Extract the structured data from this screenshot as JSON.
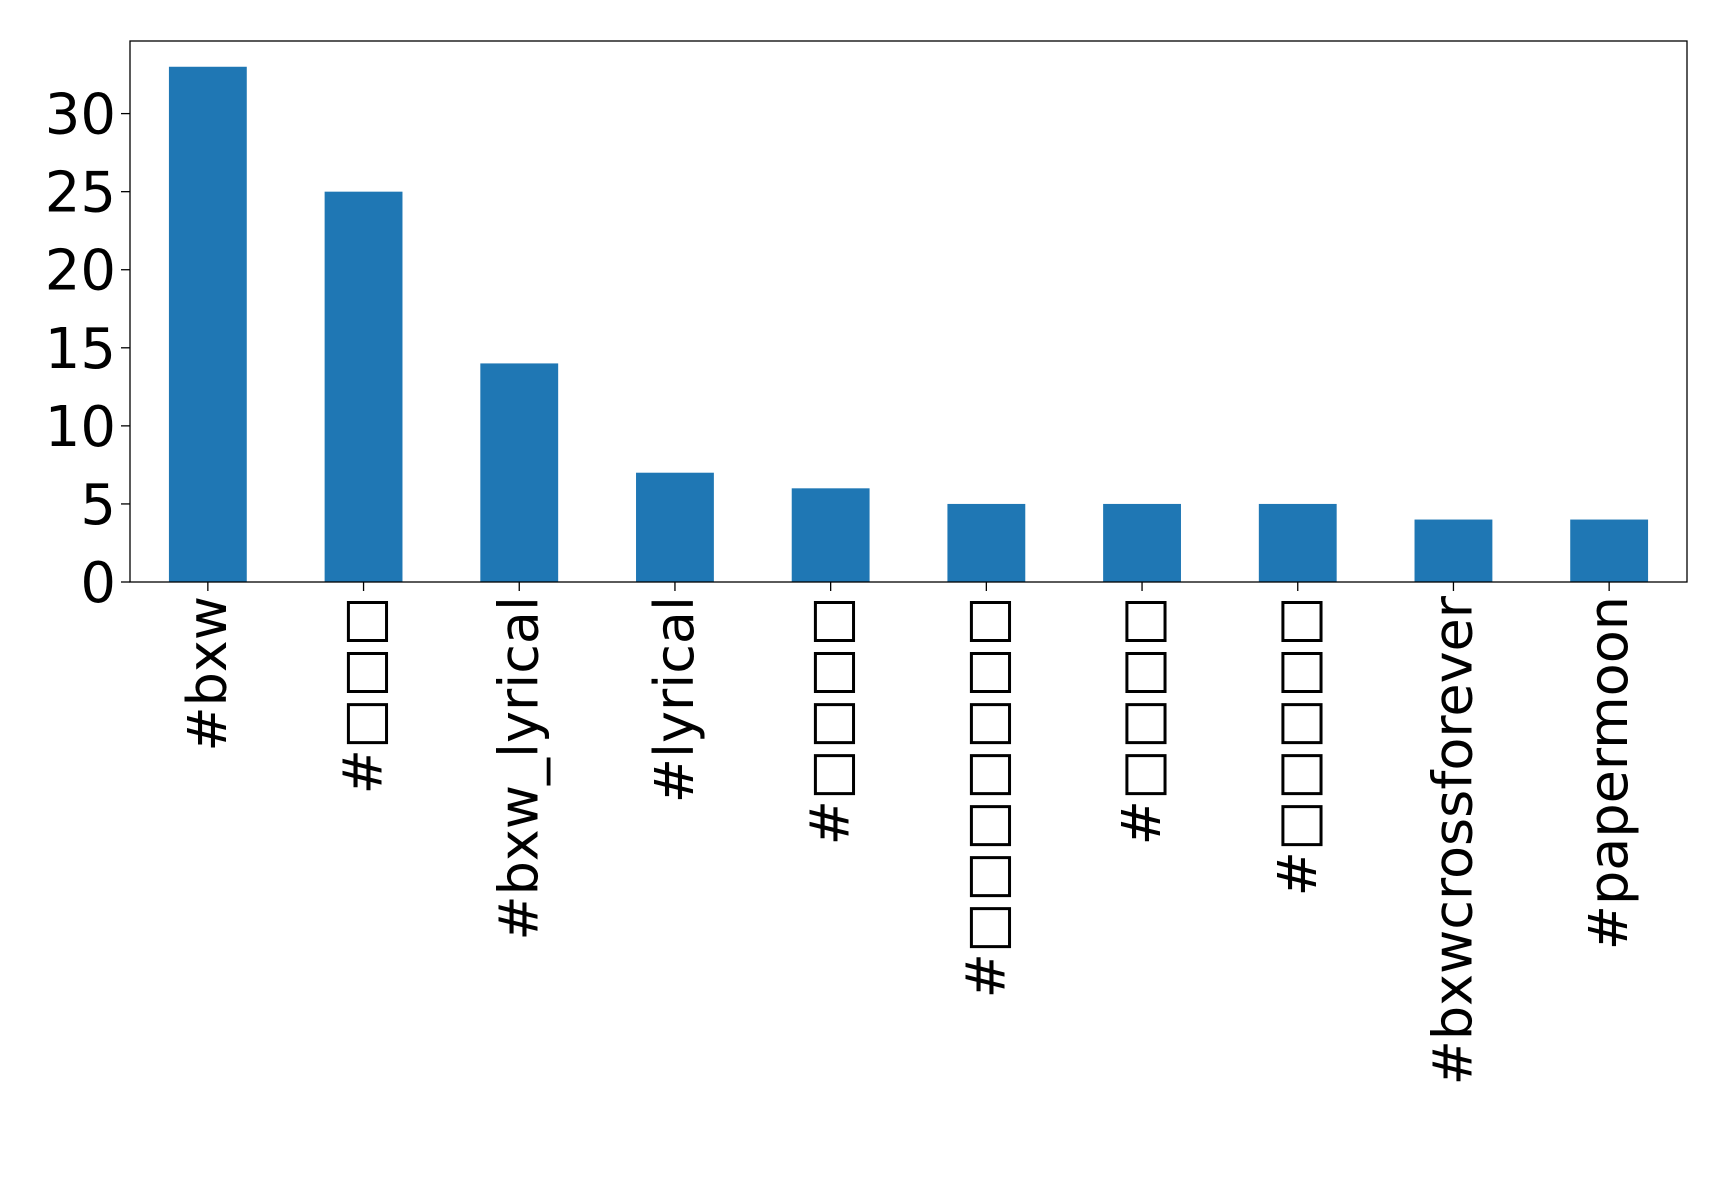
{
  "chart_data": {
    "type": "bar",
    "title": "",
    "xlabel": "",
    "ylabel": "",
    "categories": [
      "#bxw",
      "#□□□",
      "#bxw_lyrical",
      "#lyrical",
      "#□□□□",
      "#□□□□□□□",
      "#□□□□",
      "#□□□□□",
      "#bxwcrossforever",
      "#papermoon"
    ],
    "values": [
      33,
      25,
      14,
      7,
      6,
      5,
      5,
      5,
      4,
      4
    ],
    "ylim": [
      0,
      34.65
    ],
    "yticks": [
      0,
      5,
      10,
      15,
      20,
      25,
      30
    ],
    "grid": false,
    "legend": "none",
    "bar_color": "#1f77b4"
  }
}
